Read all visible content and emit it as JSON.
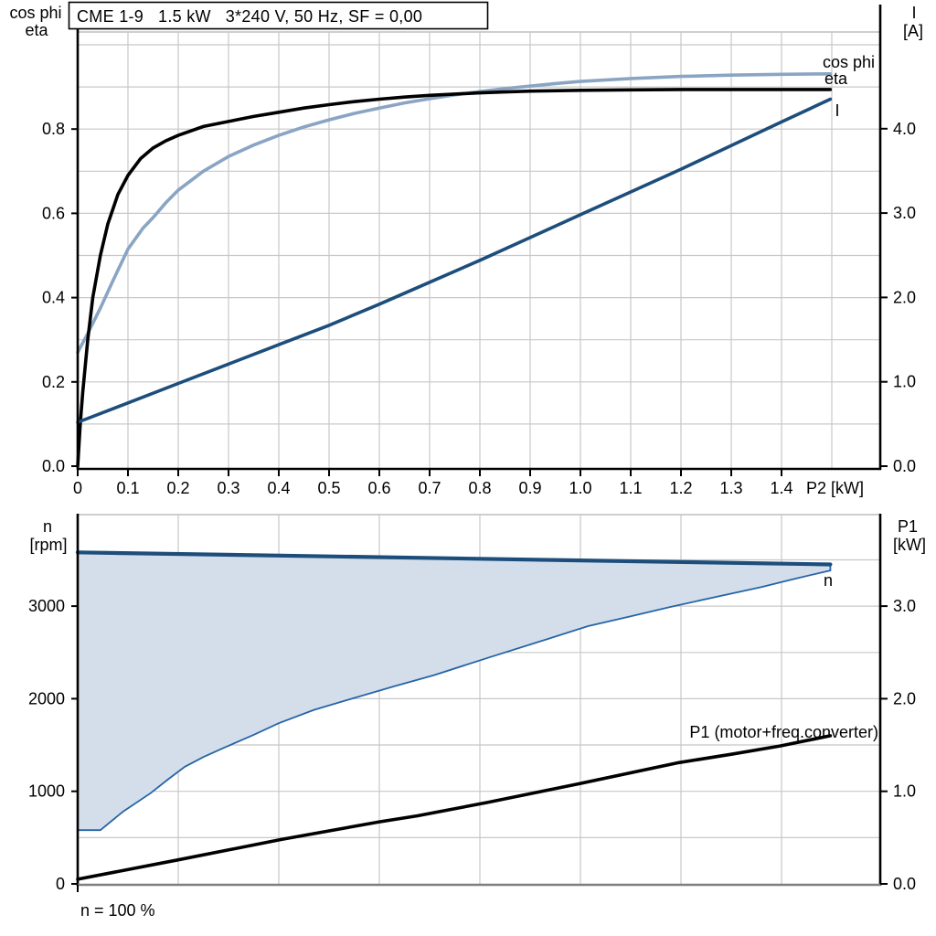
{
  "page": {
    "background": "#FFFFFF"
  },
  "colors": {
    "axis": "#000000",
    "grid": "#C8C8C8",
    "frame_gray": "#B0B0B0",
    "x_baseline_gray": "#7F7F7F",
    "eta_curve": "#000000",
    "cos_phi_curve": "#8AA5C4",
    "current_curve": "#1D4E7B",
    "speed_curve": "#1D4E7B",
    "speed_band_fill": "#D4DEEB",
    "speed_band_edge": "#2664A7",
    "p1_curve": "#000000"
  },
  "chart_data": [
    {
      "id": "motor-electrical",
      "type": "line",
      "title": "CME 1-9   1.5 kW   3*240 V, 50 Hz, SF = 0,00",
      "x_axis": {
        "label": "P2 [kW]",
        "min": 0,
        "max": 1.6,
        "grid_step": 0.1,
        "ticks": [
          {
            "v": 0,
            "label": "0"
          },
          {
            "v": 0.1,
            "label": "0.1"
          },
          {
            "v": 0.2,
            "label": "0.2"
          },
          {
            "v": 0.3,
            "label": "0.3"
          },
          {
            "v": 0.4,
            "label": "0.4"
          },
          {
            "v": 0.5,
            "label": "0.5"
          },
          {
            "v": 0.6,
            "label": "0.6"
          },
          {
            "v": 0.7,
            "label": "0.7"
          },
          {
            "v": 0.8,
            "label": "0.8"
          },
          {
            "v": 0.9,
            "label": "0.9"
          },
          {
            "v": 1.0,
            "label": "1.0"
          },
          {
            "v": 1.1,
            "label": "1.1"
          },
          {
            "v": 1.2,
            "label": "1.2"
          },
          {
            "v": 1.3,
            "label": "1.3"
          },
          {
            "v": 1.4,
            "label": "1.4"
          }
        ]
      },
      "y_left": {
        "label_lines": [
          "cos phi",
          "eta"
        ],
        "min": 0,
        "max": 1.03,
        "grid_step": 0.1,
        "ticks": [
          {
            "v": 0,
            "label": "0.0"
          },
          {
            "v": 0.2,
            "label": "0.2"
          },
          {
            "v": 0.4,
            "label": "0.4"
          },
          {
            "v": 0.6,
            "label": "0.6"
          },
          {
            "v": 0.8,
            "label": "0.8"
          }
        ]
      },
      "y_right": {
        "label_lines": [
          "I",
          "[A]"
        ],
        "min": 0,
        "max": 5.1,
        "ticks": [
          {
            "v": 0,
            "label": "0.0"
          },
          {
            "v": 1,
            "label": "1.0"
          },
          {
            "v": 2,
            "label": "2.0"
          },
          {
            "v": 3,
            "label": "3.0"
          },
          {
            "v": 4,
            "label": "4.0"
          }
        ]
      },
      "series": [
        {
          "name": "eta",
          "label": "eta",
          "axis": "left",
          "color_key": "eta_curve",
          "points": [
            [
              0,
              0
            ],
            [
              0.005,
              0.1
            ],
            [
              0.01,
              0.175
            ],
            [
              0.02,
              0.3
            ],
            [
              0.03,
              0.4
            ],
            [
              0.045,
              0.5
            ],
            [
              0.06,
              0.575
            ],
            [
              0.08,
              0.645
            ],
            [
              0.1,
              0.69
            ],
            [
              0.125,
              0.73
            ],
            [
              0.15,
              0.755
            ],
            [
              0.175,
              0.772
            ],
            [
              0.2,
              0.785
            ],
            [
              0.25,
              0.806
            ],
            [
              0.3,
              0.818
            ],
            [
              0.35,
              0.83
            ],
            [
              0.4,
              0.84
            ],
            [
              0.45,
              0.85
            ],
            [
              0.5,
              0.858
            ],
            [
              0.55,
              0.865
            ],
            [
              0.6,
              0.871
            ],
            [
              0.65,
              0.876
            ],
            [
              0.7,
              0.88
            ],
            [
              0.75,
              0.883
            ],
            [
              0.8,
              0.886
            ],
            [
              0.85,
              0.888
            ],
            [
              0.9,
              0.89
            ],
            [
              1.0,
              0.892
            ],
            [
              1.1,
              0.893
            ],
            [
              1.2,
              0.894
            ],
            [
              1.3,
              0.894
            ],
            [
              1.4,
              0.894
            ],
            [
              1.497,
              0.894
            ]
          ]
        },
        {
          "name": "cos phi",
          "label": "cos phi",
          "axis": "left",
          "color_key": "cos_phi_curve",
          "points": [
            [
              0,
              0.27
            ],
            [
              0.02,
              0.315
            ],
            [
              0.045,
              0.375
            ],
            [
              0.07,
              0.44
            ],
            [
              0.1,
              0.515
            ],
            [
              0.13,
              0.565
            ],
            [
              0.15,
              0.59
            ],
            [
              0.175,
              0.625
            ],
            [
              0.2,
              0.655
            ],
            [
              0.25,
              0.7
            ],
            [
              0.3,
              0.735
            ],
            [
              0.35,
              0.762
            ],
            [
              0.4,
              0.785
            ],
            [
              0.45,
              0.805
            ],
            [
              0.5,
              0.822
            ],
            [
              0.55,
              0.837
            ],
            [
              0.6,
              0.85
            ],
            [
              0.65,
              0.862
            ],
            [
              0.7,
              0.872
            ],
            [
              0.75,
              0.881
            ],
            [
              0.8,
              0.889
            ],
            [
              0.85,
              0.896
            ],
            [
              0.9,
              0.902
            ],
            [
              0.95,
              0.908
            ],
            [
              1.0,
              0.913
            ],
            [
              1.1,
              0.92
            ],
            [
              1.2,
              0.925
            ],
            [
              1.3,
              0.928
            ],
            [
              1.4,
              0.93
            ],
            [
              1.497,
              0.931
            ]
          ]
        },
        {
          "name": "I",
          "label": "I",
          "axis": "right",
          "color_key": "current_curve",
          "points": [
            [
              0,
              0.52
            ],
            [
              0.1,
              0.75
            ],
            [
              0.2,
              0.98
            ],
            [
              0.3,
              1.21
            ],
            [
              0.4,
              1.44
            ],
            [
              0.5,
              1.67
            ],
            [
              0.6,
              1.92
            ],
            [
              0.7,
              2.18
            ],
            [
              0.8,
              2.44
            ],
            [
              0.9,
              2.71
            ],
            [
              1.0,
              2.98
            ],
            [
              1.1,
              3.25
            ],
            [
              1.2,
              3.52
            ],
            [
              1.3,
              3.8
            ],
            [
              1.4,
              4.08
            ],
            [
              1.497,
              4.35
            ]
          ]
        }
      ]
    },
    {
      "id": "speed-power",
      "type": "area",
      "x_axis": {
        "label": "",
        "min": 0,
        "max": 1.6,
        "grid_step": 0.2,
        "footnote": "n = 100 %"
      },
      "y_left": {
        "label_lines": [
          "n",
          "[rpm]"
        ],
        "min": 0,
        "max": 3990,
        "grid_step": 500,
        "ticks": [
          {
            "v": 0,
            "label": "0"
          },
          {
            "v": 1000,
            "label": "1000"
          },
          {
            "v": 2000,
            "label": "2000"
          },
          {
            "v": 3000,
            "label": "3000"
          }
        ]
      },
      "y_right": {
        "label_lines": [
          "P1",
          "[kW]"
        ],
        "min": 0,
        "max": 3.99,
        "ticks": [
          {
            "v": 0,
            "label": "0.0"
          },
          {
            "v": 1,
            "label": "1.0"
          },
          {
            "v": 2,
            "label": "2.0"
          },
          {
            "v": 3,
            "label": "3.0"
          }
        ]
      },
      "series": [
        {
          "name": "n max",
          "label": "n",
          "axis": "left",
          "color_key": "speed_curve",
          "points": [
            [
              0,
              3580
            ],
            [
              0.5,
              3537
            ],
            [
              1.0,
              3494
            ],
            [
              1.497,
              3450
            ]
          ]
        },
        {
          "name": "n min",
          "label": "",
          "axis": "left",
          "color_key": "speed_band_edge",
          "points": [
            [
              0,
              580
            ],
            [
              0.045,
              580
            ],
            [
              0.09,
              780
            ],
            [
              0.145,
              980
            ],
            [
              0.18,
              1130
            ],
            [
              0.213,
              1265
            ],
            [
              0.25,
              1370
            ],
            [
              0.291,
              1470
            ],
            [
              0.35,
              1610
            ],
            [
              0.4,
              1735
            ],
            [
              0.47,
              1880
            ],
            [
              0.545,
              2000
            ],
            [
              0.63,
              2135
            ],
            [
              0.709,
              2255
            ],
            [
              0.815,
              2440
            ],
            [
              0.936,
              2647
            ],
            [
              1.015,
              2784
            ],
            [
              1.1,
              2890
            ],
            [
              1.178,
              2990
            ],
            [
              1.27,
              3100
            ],
            [
              1.36,
              3206
            ],
            [
              1.43,
              3300
            ],
            [
              1.497,
              3385
            ]
          ]
        },
        {
          "name": "P1",
          "label": "P1 (motor+freq.converter)",
          "axis": "right",
          "color_key": "p1_curve",
          "points": [
            [
              0,
              0.05
            ],
            [
              0.2,
              0.26
            ],
            [
              0.405,
              0.48
            ],
            [
              0.6,
              0.67
            ],
            [
              0.676,
              0.735
            ],
            [
              0.815,
              0.88
            ],
            [
              1.0,
              1.085
            ],
            [
              1.196,
              1.31
            ],
            [
              1.3,
              1.4
            ],
            [
              1.397,
              1.49
            ],
            [
              1.497,
              1.6
            ]
          ]
        }
      ],
      "band": {
        "upper": "n max",
        "lower": "n min",
        "fill_key": "speed_band_fill"
      }
    }
  ]
}
